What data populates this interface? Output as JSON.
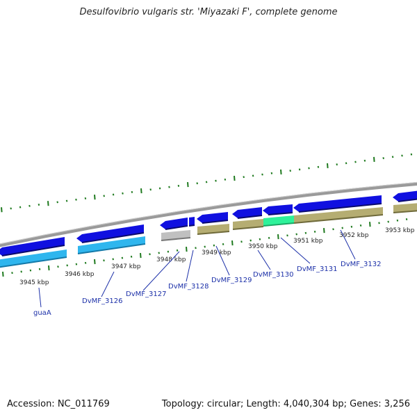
{
  "title": "Desulfovibrio vulgaris str. 'Miyazaki F', complete genome",
  "footer": {
    "accession": "Accession: NC_011769",
    "summary": "Topology: circular; Length: 4,040,304 bp; Genes: 3,256"
  },
  "colors": {
    "backbone": "#8c8c8c",
    "cds_forward": "#1010e0",
    "cds_reverse": "#1010e0",
    "gene_light": "#2fb6ee",
    "gene_olive": "#b5ad72",
    "gene_grey": "#c0c0c0",
    "gene_green": "#2ef29a",
    "ticks": "#1f7a1f",
    "label": "#1b2fa8"
  },
  "kbp_ticks": [
    {
      "id": "3945",
      "label": "3945 kbp"
    },
    {
      "id": "3946",
      "label": "3946 kbp"
    },
    {
      "id": "3947",
      "label": "3947 kbp"
    },
    {
      "id": "3948",
      "label": "3948 kbp"
    },
    {
      "id": "3949",
      "label": "3949 kbp"
    },
    {
      "id": "3950",
      "label": "3950 kbp"
    },
    {
      "id": "3951",
      "label": "3951 kbp"
    },
    {
      "id": "3952",
      "label": "3952 kbp"
    },
    {
      "id": "3953",
      "label": "3953 kbp"
    }
  ],
  "gene_labels": [
    {
      "id": "guaA",
      "label": "guaA"
    },
    {
      "id": "DvMF_3126",
      "label": "DvMF_3126"
    },
    {
      "id": "DvMF_3127",
      "label": "DvMF_3127"
    },
    {
      "id": "DvMF_3128",
      "label": "DvMF_3128"
    },
    {
      "id": "DvMF_3129",
      "label": "DvMF_3129"
    },
    {
      "id": "DvMF_3130",
      "label": "DvMF_3130"
    },
    {
      "id": "DvMF_3131",
      "label": "DvMF_3131"
    },
    {
      "id": "DvMF_3132",
      "label": "DvMF_3132"
    }
  ]
}
